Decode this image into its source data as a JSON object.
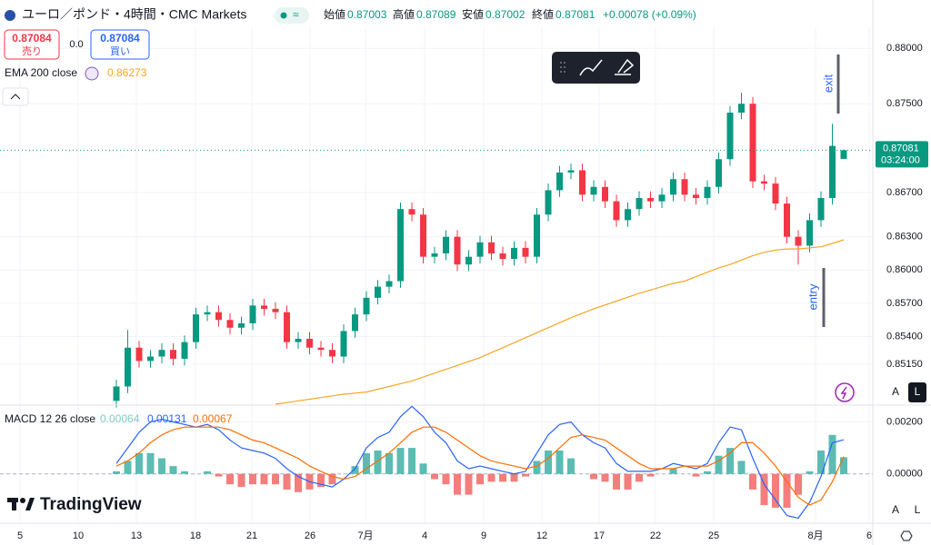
{
  "header": {
    "title": "ユーロ／ポンド・4時間・CMC Markets",
    "open_label": "始値",
    "high_label": "高値",
    "low_label": "安値",
    "close_label": "終値",
    "change": "+0.00078 (+0.09%)",
    "sell_price": "0.87084",
    "sell_label": "売り",
    "spread": "0.0",
    "buy_price": "0.87084",
    "buy_label": "買い",
    "countdown": "03:24:00",
    "logo": "TradingView",
    "button_a": "A",
    "button_l": "L"
  },
  "chart_data": [
    {
      "type": "candlestick",
      "up_color": "#089981",
      "down_color": "#f23645",
      "grid": true,
      "open": [
        0.8482,
        0.8495,
        0.853,
        0.8518,
        0.8522,
        0.8528,
        0.852,
        0.8535,
        0.856,
        0.8562,
        0.8555,
        0.8548,
        0.8552,
        0.8568,
        0.8565,
        0.8562,
        0.8535,
        0.8538,
        0.853,
        0.8528,
        0.8522,
        0.8545,
        0.856,
        0.8575,
        0.8585,
        0.859,
        0.8655,
        0.865,
        0.8612,
        0.8615,
        0.863,
        0.8605,
        0.8612,
        0.8625,
        0.8615,
        0.861,
        0.862,
        0.8612,
        0.865,
        0.8672,
        0.8688,
        0.869,
        0.8668,
        0.8675,
        0.8662,
        0.8645,
        0.8655,
        0.8665,
        0.8662,
        0.8668,
        0.8682,
        0.8668,
        0.8665,
        0.8675,
        0.87,
        0.8742,
        0.875,
        0.868,
        0.8678,
        0.866,
        0.863,
        0.8622,
        0.8645,
        0.8665,
        0.87003
      ],
      "high": [
        0.8501,
        0.8546,
        0.8536,
        0.8528,
        0.8534,
        0.8534,
        0.8541,
        0.8566,
        0.8568,
        0.8568,
        0.8561,
        0.8558,
        0.8574,
        0.8574,
        0.8571,
        0.8568,
        0.8544,
        0.8544,
        0.8536,
        0.8534,
        0.8551,
        0.8566,
        0.8581,
        0.8591,
        0.8596,
        0.8661,
        0.8661,
        0.8656,
        0.8621,
        0.8636,
        0.8636,
        0.8618,
        0.8631,
        0.8631,
        0.8621,
        0.8626,
        0.8626,
        0.8656,
        0.8678,
        0.8694,
        0.8696,
        0.8696,
        0.8681,
        0.8681,
        0.8668,
        0.8661,
        0.8671,
        0.8671,
        0.8674,
        0.8688,
        0.8688,
        0.8674,
        0.8681,
        0.8706,
        0.8748,
        0.876,
        0.8756,
        0.8686,
        0.8684,
        0.8666,
        0.8636,
        0.8651,
        0.8671,
        0.8732,
        0.87089
      ],
      "low": [
        0.8476,
        0.8489,
        0.8512,
        0.8512,
        0.8516,
        0.8514,
        0.8514,
        0.8529,
        0.8554,
        0.8549,
        0.8542,
        0.8542,
        0.8546,
        0.8559,
        0.8556,
        0.8529,
        0.8529,
        0.8524,
        0.8522,
        0.8516,
        0.8516,
        0.8539,
        0.8554,
        0.8569,
        0.8579,
        0.8584,
        0.8644,
        0.8606,
        0.8606,
        0.8609,
        0.8599,
        0.8599,
        0.8606,
        0.8609,
        0.8604,
        0.8604,
        0.8606,
        0.8606,
        0.8644,
        0.8666,
        0.8682,
        0.8662,
        0.8662,
        0.8656,
        0.8639,
        0.8639,
        0.8649,
        0.8656,
        0.8656,
        0.8662,
        0.8662,
        0.8659,
        0.8659,
        0.8669,
        0.8694,
        0.8736,
        0.8674,
        0.8672,
        0.8654,
        0.8624,
        0.8605,
        0.8616,
        0.8639,
        0.8659,
        0.87002
      ],
      "close": [
        0.8495,
        0.853,
        0.8518,
        0.8522,
        0.8528,
        0.852,
        0.8535,
        0.856,
        0.8562,
        0.8555,
        0.8548,
        0.8552,
        0.8568,
        0.8565,
        0.8562,
        0.8535,
        0.8538,
        0.853,
        0.8528,
        0.8522,
        0.8545,
        0.856,
        0.8575,
        0.8585,
        0.859,
        0.8655,
        0.865,
        0.8612,
        0.8615,
        0.863,
        0.8605,
        0.8612,
        0.8625,
        0.8615,
        0.861,
        0.862,
        0.8612,
        0.865,
        0.8672,
        0.8688,
        0.869,
        0.8668,
        0.8675,
        0.8662,
        0.8645,
        0.8655,
        0.8665,
        0.8662,
        0.8668,
        0.8682,
        0.8668,
        0.8665,
        0.8675,
        0.87,
        0.8742,
        0.875,
        0.868,
        0.8678,
        0.866,
        0.863,
        0.8622,
        0.8645,
        0.8665,
        0.8712,
        0.87081
      ],
      "ema": {
        "name": "EMA 200 close",
        "color": "#f5a623",
        "values": [
          null,
          null,
          null,
          null,
          null,
          null,
          null,
          null,
          null,
          null,
          null,
          null,
          null,
          null,
          0.8479,
          0.84805,
          0.8482,
          0.84835,
          0.8485,
          0.84865,
          0.8488,
          0.8489,
          0.849,
          0.84925,
          0.8495,
          0.84975,
          0.85,
          0.85035,
          0.8507,
          0.85105,
          0.8514,
          0.85175,
          0.8521,
          0.85255,
          0.853,
          0.85345,
          0.8539,
          0.85435,
          0.8548,
          0.85525,
          0.8557,
          0.8561,
          0.8565,
          0.85685,
          0.8572,
          0.85755,
          0.8579,
          0.8582,
          0.8585,
          0.8588,
          0.859,
          0.8594,
          0.8598,
          0.8602,
          0.8605,
          0.8609,
          0.8613,
          0.8616,
          0.8618,
          0.8619,
          0.8619,
          0.862,
          0.8621,
          0.8624,
          0.86273
        ]
      },
      "ylim": [
        0.8479,
        0.8819
      ],
      "yticks": [
        {
          "value": 0.88,
          "label": "0.88000"
        },
        {
          "value": 0.875,
          "label": "0.87500"
        },
        {
          "value": 0.867,
          "label": "0.86700"
        },
        {
          "value": 0.863,
          "label": "0.86300"
        },
        {
          "value": 0.86,
          "label": "0.86000"
        },
        {
          "value": 0.857,
          "label": "0.85700"
        },
        {
          "value": 0.854,
          "label": "0.85400"
        },
        {
          "value": 0.8515,
          "label": "0.85150"
        }
      ],
      "xlim": [
        -10.24,
        66.56
      ],
      "xticks": [
        {
          "value": -8.48,
          "label": "5"
        },
        {
          "value": -3.36,
          "label": "10"
        },
        {
          "value": 1.76,
          "label": "13"
        },
        {
          "value": 6.96,
          "label": "18"
        },
        {
          "value": 11.92,
          "label": "21"
        },
        {
          "value": 17.04,
          "label": "26"
        },
        {
          "value": 21.92,
          "label": "7月"
        },
        {
          "value": 27.12,
          "label": "4"
        },
        {
          "value": 32.32,
          "label": "9"
        },
        {
          "value": 37.44,
          "label": "12"
        },
        {
          "value": 42.48,
          "label": "17"
        },
        {
          "value": 47.44,
          "label": "22"
        },
        {
          "value": 52.56,
          "label": "25"
        },
        {
          "value": 61.52,
          "label": "8月"
        },
        {
          "value": 66.24,
          "label": "6"
        }
      ],
      "annotations": [
        "exit",
        "entry"
      ]
    },
    {
      "type": "macd",
      "title": "MACD 12 26 close",
      "grid": true,
      "series": [
        {
          "color": "#2962ff",
          "values": [
            0.0004,
            0.001,
            0.0016,
            0.002,
            0.0021,
            0.002,
            0.0019,
            0.0018,
            0.0019,
            0.0017,
            0.0013,
            0.001,
            0.0009,
            0.0008,
            0.0006,
            0.0002,
            -0.0001,
            -0.0003,
            -0.0004,
            -0.0005,
            -0.0002,
            0.0002,
            0.001,
            0.0014,
            0.0016,
            0.0022,
            0.0026,
            0.0022,
            0.0016,
            0.0012,
            0.0005,
            0.0002,
            0.0003,
            0.0002,
            0.0001,
            0,
            0.0001,
            0.0008,
            0.0015,
            0.0019,
            0.002,
            0.0015,
            0.0012,
            0.001,
            0.0004,
            0.0001,
            0.0001,
            0.0001,
            0.0002,
            0.0004,
            0.0003,
            0.0002,
            0.0004,
            0.0012,
            0.0018,
            0.0017,
            0.0006,
            -0.0004,
            -0.001,
            -0.0016,
            -0.0017,
            -0.0011,
            -0.0001,
            0.0012,
            0.00131
          ]
        },
        {
          "color": "#ff6d00",
          "values": [
            0.0003,
            0.0005,
            0.0008,
            0.0012,
            0.0015,
            0.0017,
            0.0018,
            0.0018,
            0.0018,
            0.0018,
            0.0017,
            0.0015,
            0.0013,
            0.0012,
            0.001,
            0.0008,
            0.0006,
            0.0003,
            0.0001,
            -0.0001,
            -0.0002,
            -0.0001,
            0.0002,
            0.0005,
            0.0008,
            0.0012,
            0.0016,
            0.0018,
            0.0018,
            0.0016,
            0.0013,
            0.001,
            0.0007,
            0.0005,
            0.0004,
            0.0003,
            0.0002,
            0.0003,
            0.0006,
            0.001,
            0.0014,
            0.0015,
            0.0014,
            0.0013,
            0.001,
            0.0007,
            0.0004,
            0.0002,
            0.0002,
            0.0002,
            0.0003,
            0.0003,
            0.0003,
            0.0005,
            0.0008,
            0.0012,
            0.0012,
            0.0008,
            0.0003,
            -0.0003,
            -0.0009,
            -0.0012,
            -0.001,
            -0.0003,
            0.00067
          ]
        },
        {
          "type": "bar",
          "color": "#80cbc4",
          "colors": [
            "#26a69a",
            "#ef5350"
          ],
          "values": [
            0.0001,
            0.0005,
            0.0008,
            0.0008,
            0.0006,
            0.0003,
            0.0001,
            0,
            0.0001,
            -0.0001,
            -0.0004,
            -0.0005,
            -0.0004,
            -0.0004,
            -0.0004,
            -0.0006,
            -0.0007,
            -0.0006,
            -0.0005,
            -0.0004,
            0,
            0.0003,
            0.0008,
            0.0009,
            0.0008,
            0.001,
            0.001,
            0.0004,
            -0.0002,
            -0.0004,
            -0.0008,
            -0.0008,
            -0.0004,
            -0.0003,
            -0.0003,
            -0.0003,
            -0.0001,
            0.0005,
            0.0009,
            0.0009,
            0.0006,
            0,
            -0.0002,
            -0.0003,
            -0.0006,
            -0.0006,
            -0.0003,
            -0.0001,
            0,
            0.0002,
            0,
            -0.0001,
            0.0001,
            0.0007,
            0.001,
            0.0005,
            -0.0006,
            -0.0012,
            -0.0013,
            -0.0013,
            -0.0008,
            0.0001,
            0.0009,
            0.0015,
            0.00064
          ]
        }
      ],
      "ylim": [
        -0.00186,
        0.00261
      ],
      "yticks": [
        {
          "value": 0.002,
          "label": "0.00200"
        },
        {
          "value": 0,
          "label": "0.00000"
        }
      ]
    }
  ]
}
